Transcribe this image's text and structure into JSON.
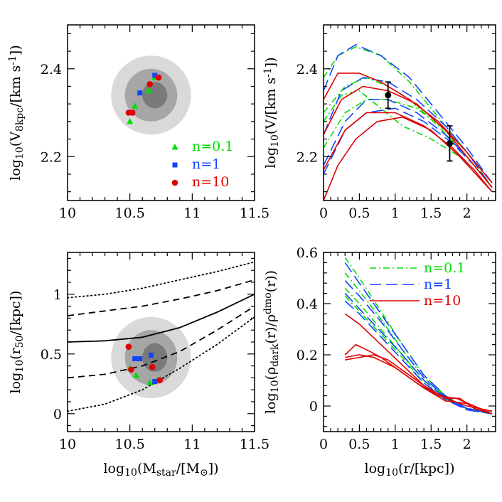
{
  "figure": {
    "panels": [
      "tl",
      "tr",
      "bl",
      "br"
    ]
  },
  "colors": {
    "n01": "#00dd00",
    "n1": "#1144ff",
    "n10": "#e00000",
    "ell_outer": "#d9d9d9",
    "ell_mid": "#a6a6a6",
    "ell_inner": "#7a7a7a"
  },
  "chart_data": [
    {
      "id": "tl",
      "type": "scatter",
      "xlim": [
        10,
        11.5
      ],
      "ylim": [
        2.1,
        2.5
      ],
      "xticks": [
        10,
        10.5,
        11,
        11.5
      ],
      "xtick_labels": [
        "10",
        "10.5",
        "11",
        "11.5"
      ],
      "yticks": [
        2.2,
        2.4
      ],
      "ytick_labels": [
        "2.2",
        "2.4"
      ],
      "xlabel": "",
      "ylabel": "log10(V8kpc/[km s-1])",
      "ylabel_parts": [
        "log",
        "10",
        "(V",
        "8kpc",
        "/[km s",
        "-1",
        "])"
      ],
      "ellipses": [
        {
          "cx": 10.67,
          "cy": 2.34,
          "rx": 0.32,
          "ry": 0.09,
          "color": "ell_outer"
        },
        {
          "cx": 10.67,
          "cy": 2.34,
          "rx": 0.21,
          "ry": 0.06,
          "color": "ell_mid"
        },
        {
          "cx": 10.7,
          "cy": 2.34,
          "rx": 0.1,
          "ry": 0.03,
          "color": "ell_inner"
        }
      ],
      "series": [
        {
          "name": "n=0.1",
          "marker": "triangle",
          "color": "n01",
          "points": [
            [
              10.5,
              2.28
            ],
            [
              10.54,
              2.315
            ],
            [
              10.65,
              2.35
            ],
            [
              10.7,
              2.38
            ]
          ]
        },
        {
          "name": "n=1",
          "marker": "square",
          "color": "n1",
          "points": [
            [
              10.52,
              2.3
            ],
            [
              10.58,
              2.345
            ],
            [
              10.7,
              2.385
            ]
          ]
        },
        {
          "name": "n=10",
          "marker": "circle",
          "color": "n10",
          "points": [
            [
              10.49,
              2.3
            ],
            [
              10.52,
              2.3
            ],
            [
              10.66,
              2.365
            ],
            [
              10.73,
              2.38
            ]
          ]
        }
      ],
      "legend": {
        "position": "lower-right",
        "entries": [
          {
            "label": "n=0.1",
            "marker": "triangle",
            "color": "n01"
          },
          {
            "label": "n=1",
            "marker": "square",
            "color": "n1"
          },
          {
            "label": "n=10",
            "marker": "circle",
            "color": "n10"
          }
        ]
      }
    },
    {
      "id": "tr",
      "type": "line",
      "xlim": [
        0,
        2.4
      ],
      "ylim": [
        2.1,
        2.5
      ],
      "xticks": [
        0,
        0.5,
        1,
        1.5,
        2
      ],
      "xtick_labels": [
        "0",
        "0.5",
        "1",
        "1.5",
        "2"
      ],
      "yticks": [
        2.2,
        2.4
      ],
      "ytick_labels": [
        "2.2",
        "2.4"
      ],
      "xlabel": "",
      "ylabel": "log10(V/[km s-1])",
      "ylabel_parts": [
        "log",
        "10",
        "(V/[km s",
        "-1",
        "])"
      ],
      "errorbars": [
        {
          "x": 0.9,
          "y": 2.34,
          "yerr": 0.03
        },
        {
          "x": 1.76,
          "y": 2.23,
          "yerr": 0.04
        }
      ],
      "series": [
        {
          "color": "n01",
          "style": "dashdot",
          "x": [
            0.0,
            0.2,
            0.45,
            0.8,
            1.2,
            1.6,
            2.0,
            2.35
          ],
          "y": [
            2.38,
            2.43,
            2.45,
            2.43,
            2.37,
            2.29,
            2.21,
            2.13
          ]
        },
        {
          "color": "n01",
          "style": "dashdot",
          "x": [
            0.0,
            0.3,
            0.6,
            0.9,
            1.2,
            1.6,
            2.0,
            2.35
          ],
          "y": [
            2.3,
            2.36,
            2.38,
            2.36,
            2.33,
            2.27,
            2.2,
            2.13
          ]
        },
        {
          "color": "n01",
          "style": "dashdot",
          "x": [
            0.0,
            0.25,
            0.5,
            0.8,
            1.1,
            1.5,
            1.9,
            2.35
          ],
          "y": [
            2.28,
            2.34,
            2.35,
            2.31,
            2.27,
            2.24,
            2.2,
            2.12
          ]
        },
        {
          "color": "n01",
          "style": "dashdot",
          "x": [
            0.0,
            0.3,
            0.6,
            0.9,
            1.3,
            1.7,
            2.0,
            2.35
          ],
          "y": [
            2.22,
            2.3,
            2.33,
            2.33,
            2.31,
            2.26,
            2.21,
            2.14
          ]
        },
        {
          "color": "n1",
          "style": "longdash",
          "x": [
            0.0,
            0.2,
            0.45,
            0.8,
            1.2,
            1.6,
            2.0,
            2.35
          ],
          "y": [
            2.35,
            2.43,
            2.455,
            2.43,
            2.38,
            2.3,
            2.22,
            2.14
          ]
        },
        {
          "color": "n1",
          "style": "longdash",
          "x": [
            0.0,
            0.25,
            0.55,
            0.9,
            1.3,
            1.7,
            2.0,
            2.35
          ],
          "y": [
            2.25,
            2.35,
            2.38,
            2.37,
            2.33,
            2.27,
            2.21,
            2.13
          ]
        },
        {
          "color": "n1",
          "style": "longdash",
          "x": [
            0.0,
            0.3,
            0.6,
            0.9,
            1.3,
            1.7,
            2.0,
            2.35
          ],
          "y": [
            2.18,
            2.28,
            2.33,
            2.33,
            2.3,
            2.25,
            2.2,
            2.13
          ]
        },
        {
          "color": "n1",
          "style": "longdash",
          "x": [
            0.0,
            0.3,
            0.6,
            1.0,
            1.4,
            1.8,
            2.1,
            2.35
          ],
          "y": [
            2.16,
            2.26,
            2.3,
            2.31,
            2.28,
            2.23,
            2.18,
            2.13
          ]
        },
        {
          "color": "n10",
          "style": "solid",
          "x": [
            0.0,
            0.2,
            0.5,
            0.8,
            1.2,
            1.6,
            2.0,
            2.35
          ],
          "y": [
            2.33,
            2.39,
            2.39,
            2.37,
            2.33,
            2.28,
            2.21,
            2.14
          ]
        },
        {
          "color": "n10",
          "style": "solid",
          "x": [
            0.0,
            0.25,
            0.55,
            0.9,
            1.3,
            1.7,
            2.0,
            2.35
          ],
          "y": [
            2.25,
            2.33,
            2.36,
            2.35,
            2.32,
            2.26,
            2.2,
            2.13
          ]
        },
        {
          "color": "n10",
          "style": "solid",
          "x": [
            0.0,
            0.3,
            0.6,
            1.0,
            1.4,
            1.8,
            2.1,
            2.35
          ],
          "y": [
            2.17,
            2.26,
            2.3,
            2.3,
            2.27,
            2.22,
            2.17,
            2.12
          ]
        },
        {
          "color": "n10",
          "style": "solid",
          "x": [
            0.0,
            0.2,
            0.45,
            0.75,
            1.1,
            1.5,
            1.9,
            2.35
          ],
          "y": [
            2.1,
            2.18,
            2.24,
            2.28,
            2.29,
            2.26,
            2.2,
            2.12
          ]
        }
      ]
    },
    {
      "id": "bl",
      "type": "scatter",
      "xlim": [
        10,
        11.5
      ],
      "ylim": [
        -0.15,
        1.35
      ],
      "xticks": [
        10,
        10.5,
        11,
        11.5
      ],
      "xtick_labels": [
        "10",
        "10.5",
        "11",
        "11.5"
      ],
      "yticks": [
        0,
        0.5,
        1
      ],
      "ytick_labels": [
        "0",
        "0.5",
        "1"
      ],
      "xlabel": "log10(Mstar/[M⊙])",
      "xlabel_parts": [
        "log",
        "10",
        "(M",
        "star",
        "/[M",
        "⊙",
        "])"
      ],
      "ylabel": "log10(r50/[kpc])",
      "ylabel_parts": [
        "log",
        "10",
        "(r",
        "50",
        "/[kpc])"
      ],
      "ellipses": [
        {
          "cx": 10.67,
          "cy": 0.47,
          "rx": 0.32,
          "ry": 0.34,
          "color": "ell_outer"
        },
        {
          "cx": 10.67,
          "cy": 0.47,
          "rx": 0.21,
          "ry": 0.23,
          "color": "ell_mid"
        },
        {
          "cx": 10.7,
          "cy": 0.47,
          "rx": 0.1,
          "ry": 0.12,
          "color": "ell_inner"
        }
      ],
      "relations": [
        {
          "style": "solid",
          "x": [
            10,
            10.3,
            10.6,
            10.9,
            11.2,
            11.5
          ],
          "y": [
            0.6,
            0.61,
            0.64,
            0.72,
            0.85,
            1.0
          ]
        },
        {
          "style": "dashed",
          "x": [
            10,
            10.3,
            10.6,
            10.9,
            11.2,
            11.5
          ],
          "y": [
            0.82,
            0.86,
            0.9,
            0.96,
            1.03,
            1.12
          ]
        },
        {
          "style": "dashed",
          "x": [
            10,
            10.3,
            10.6,
            10.9,
            11.2,
            11.5
          ],
          "y": [
            0.3,
            0.33,
            0.4,
            0.52,
            0.7,
            0.9
          ]
        },
        {
          "style": "dotted",
          "x": [
            10,
            10.3,
            10.6,
            10.9,
            11.2,
            11.5
          ],
          "y": [
            0.97,
            1.0,
            1.05,
            1.12,
            1.19,
            1.27
          ]
        },
        {
          "style": "dotted",
          "x": [
            10,
            10.3,
            10.6,
            10.9,
            11.2,
            11.5
          ],
          "y": [
            0.02,
            0.08,
            0.2,
            0.38,
            0.58,
            0.81
          ]
        }
      ],
      "series": [
        {
          "name": "n=0.1",
          "marker": "triangle",
          "color": "n01",
          "points": [
            [
              10.5,
              0.38
            ],
            [
              10.55,
              0.32
            ],
            [
              10.66,
              0.26
            ],
            [
              10.72,
              0.28
            ]
          ]
        },
        {
          "name": "n=1",
          "marker": "square",
          "color": "n1",
          "points": [
            [
              10.54,
              0.46
            ],
            [
              10.58,
              0.46
            ],
            [
              10.67,
              0.49
            ],
            [
              10.7,
              0.27
            ]
          ]
        },
        {
          "name": "n=10",
          "marker": "circle",
          "color": "n10",
          "points": [
            [
              10.49,
              0.56
            ],
            [
              10.51,
              0.37
            ],
            [
              10.68,
              0.39
            ],
            [
              10.74,
              0.28
            ]
          ]
        }
      ]
    },
    {
      "id": "br",
      "type": "line",
      "xlim": [
        0,
        2.4
      ],
      "ylim": [
        -0.1,
        0.6
      ],
      "xticks": [
        0,
        0.5,
        1,
        1.5,
        2
      ],
      "xtick_labels": [
        "0",
        "0.5",
        "1",
        "1.5",
        "2"
      ],
      "yticks": [
        0,
        0.2,
        0.4,
        0.6
      ],
      "ytick_labels": [
        "0",
        "0.2",
        "0.4",
        "0.6"
      ],
      "xlabel": "log10(r/[kpc])",
      "xlabel_parts": [
        "log",
        "10",
        "(r/[kpc])"
      ],
      "ylabel": "log10(ρdark(r)/ρdmo(r))",
      "ylabel_parts": [
        "log",
        "10",
        "(ρ",
        "dark",
        "(r)/ρ",
        "dmo",
        "(r))"
      ],
      "series": [
        {
          "color": "n01",
          "style": "dashdot",
          "x": [
            0.3,
            0.5,
            0.8,
            1.1,
            1.4,
            1.7,
            2.0,
            2.35
          ],
          "y": [
            0.58,
            0.5,
            0.37,
            0.24,
            0.12,
            0.04,
            -0.01,
            -0.03
          ]
        },
        {
          "color": "n01",
          "style": "dashdot",
          "x": [
            0.3,
            0.5,
            0.8,
            1.1,
            1.4,
            1.7,
            2.0,
            2.35
          ],
          "y": [
            0.52,
            0.45,
            0.34,
            0.22,
            0.11,
            0.035,
            -0.01,
            -0.03
          ]
        },
        {
          "color": "n01",
          "style": "dashdot",
          "x": [
            0.3,
            0.5,
            0.8,
            1.1,
            1.4,
            1.7,
            2.0,
            2.35
          ],
          "y": [
            0.46,
            0.4,
            0.3,
            0.2,
            0.1,
            0.03,
            -0.015,
            -0.03
          ]
        },
        {
          "color": "n01",
          "style": "dashdot",
          "x": [
            0.3,
            0.5,
            0.8,
            1.1,
            1.4,
            1.7,
            2.0,
            2.35
          ],
          "y": [
            0.43,
            0.37,
            0.28,
            0.19,
            0.09,
            0.03,
            -0.01,
            -0.02
          ]
        },
        {
          "color": "n1",
          "style": "longdash",
          "x": [
            0.3,
            0.5,
            0.8,
            1.1,
            1.4,
            1.7,
            2.0,
            2.35
          ],
          "y": [
            0.56,
            0.48,
            0.36,
            0.24,
            0.12,
            0.04,
            -0.01,
            -0.03
          ]
        },
        {
          "color": "n1",
          "style": "longdash",
          "x": [
            0.3,
            0.5,
            0.8,
            1.1,
            1.4,
            1.7,
            2.0,
            2.35
          ],
          "y": [
            0.49,
            0.43,
            0.33,
            0.22,
            0.11,
            0.035,
            -0.015,
            -0.03
          ]
        },
        {
          "color": "n1",
          "style": "longdash",
          "x": [
            0.3,
            0.5,
            0.8,
            1.1,
            1.4,
            1.7,
            2.0,
            2.35
          ],
          "y": [
            0.44,
            0.38,
            0.29,
            0.2,
            0.1,
            0.03,
            -0.01,
            -0.025
          ]
        },
        {
          "color": "n1",
          "style": "longdash",
          "x": [
            0.3,
            0.5,
            0.8,
            1.1,
            1.4,
            1.7,
            2.0,
            2.35
          ],
          "y": [
            0.41,
            0.36,
            0.27,
            0.18,
            0.09,
            0.025,
            -0.015,
            -0.03
          ]
        },
        {
          "color": "n10",
          "style": "solid",
          "x": [
            0.3,
            0.5,
            0.8,
            1.1,
            1.4,
            1.7,
            1.9,
            2.1,
            2.35
          ],
          "y": [
            0.36,
            0.32,
            0.24,
            0.16,
            0.08,
            0.03,
            0.03,
            -0.01,
            -0.03
          ]
        },
        {
          "color": "n10",
          "style": "solid",
          "x": [
            0.3,
            0.45,
            0.6,
            0.8,
            1.1,
            1.4,
            1.7,
            2.0,
            2.35
          ],
          "y": [
            0.2,
            0.24,
            0.22,
            0.19,
            0.13,
            0.07,
            0.02,
            0.01,
            -0.03
          ]
        },
        {
          "color": "n10",
          "style": "solid",
          "x": [
            0.3,
            0.5,
            0.7,
            0.9,
            1.2,
            1.5,
            1.8,
            2.0,
            2.35
          ],
          "y": [
            0.18,
            0.19,
            0.2,
            0.18,
            0.12,
            0.06,
            0.02,
            0.0,
            -0.02
          ]
        },
        {
          "color": "n10",
          "style": "solid",
          "x": [
            0.3,
            0.5,
            0.7,
            1.0,
            1.3,
            1.6,
            1.85,
            2.1,
            2.35
          ],
          "y": [
            0.19,
            0.2,
            0.19,
            0.15,
            0.09,
            0.04,
            0.03,
            0.0,
            -0.03
          ]
        }
      ],
      "legend": {
        "position": "top-right",
        "entries": [
          {
            "label": "n=0.1",
            "style": "dashdot",
            "color": "n01"
          },
          {
            "label": "n=1",
            "style": "longdash",
            "color": "n1"
          },
          {
            "label": "n=10",
            "style": "solid",
            "color": "n10"
          }
        ]
      }
    }
  ]
}
